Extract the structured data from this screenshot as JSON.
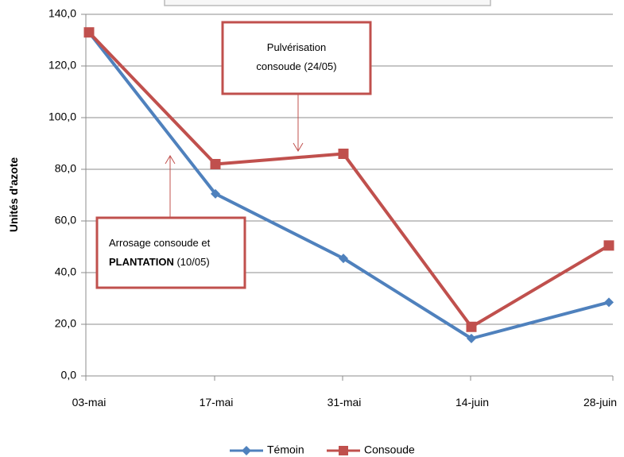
{
  "chart_data": {
    "type": "line",
    "categories": [
      "03-mai",
      "17-mai",
      "31-mai",
      "14-juin",
      "28-juin"
    ],
    "ylabel": "Unités d'azote",
    "ylim": [
      0,
      140
    ],
    "yticks": [
      "0,0",
      "20,0",
      "40,0",
      "60,0",
      "80,0",
      "100,0",
      "120,0",
      "140,0"
    ],
    "grid": true,
    "legend_position": "bottom",
    "series": [
      {
        "name": "Témoin",
        "color": "#4F81BD",
        "marker": "diamond",
        "values": [
          133,
          70.5,
          45.5,
          14.5,
          28.5
        ]
      },
      {
        "name": "Consoude",
        "color": "#C0504D",
        "marker": "square",
        "values": [
          133,
          82,
          86,
          19,
          50.5
        ]
      }
    ],
    "annotations": [
      {
        "name": "pulverisation",
        "lines": [
          [
            "Pulvérisation"
          ],
          [
            "consoude (24/05)"
          ]
        ],
        "border": "#C0504D"
      },
      {
        "name": "arrosage",
        "lines": [
          [
            "Arrosage consoude et"
          ],
          [
            "PLANTATION",
            " (10/05)"
          ]
        ],
        "border": "#C0504D"
      }
    ]
  }
}
